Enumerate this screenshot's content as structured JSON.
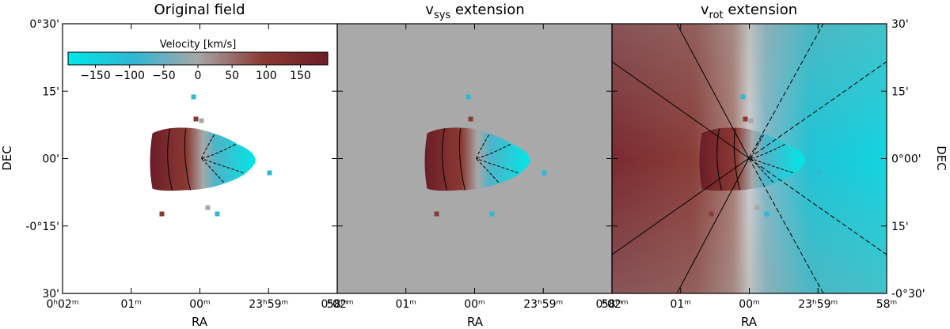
{
  "panels": [
    {
      "id": "original",
      "title_main": "Original field",
      "title_sub": "",
      "title_rest": ""
    },
    {
      "id": "vsys",
      "title_main": "v",
      "title_sub": "sys",
      "title_rest": " extension"
    },
    {
      "id": "vrot",
      "title_main": "v",
      "title_sub": "rot",
      "title_rest": " extension"
    }
  ],
  "axes": {
    "xlabel": "RA",
    "ylabel_left": "DEC",
    "ylabel_right": "DEC",
    "left_ticks": [
      {
        "dec": 30,
        "label": "0°30'"
      },
      {
        "dec": 15,
        "label": "15'"
      },
      {
        "dec": 0,
        "label": "00'"
      },
      {
        "dec": -15,
        "label": "-0°15'"
      },
      {
        "dec": -30,
        "label": "30'"
      }
    ],
    "right_ticks": [
      {
        "dec": 30,
        "label": "30'"
      },
      {
        "dec": 15,
        "label": "15'"
      },
      {
        "dec": 0,
        "label": "0°00'"
      },
      {
        "dec": -15,
        "label": "15'"
      },
      {
        "dec": -30,
        "label": "-0°30'"
      }
    ],
    "x_ticks": [
      {
        "ra_min": 2,
        "label": "0ʰ02ᵐ"
      },
      {
        "ra_min": 1,
        "label": "01ᵐ"
      },
      {
        "ra_min": 0,
        "label": "00ᵐ"
      },
      {
        "ra_min": -1,
        "label": "23ʰ59ᵐ"
      },
      {
        "ra_min": -2,
        "label": "58ᵐ"
      }
    ],
    "x_range": [
      2,
      -2
    ],
    "y_range": [
      -30,
      30
    ]
  },
  "colorbar": {
    "label": "Velocity [km/s]",
    "range": [
      -190,
      190
    ],
    "ticks": [
      -150,
      -100,
      -50,
      0,
      50,
      100,
      150
    ],
    "tick_labels": [
      "−150",
      "−100",
      "−50",
      "0",
      "50",
      "100",
      "150"
    ],
    "color_stops": [
      "#00e6e6",
      "#2fb7d4",
      "#a7a7a7",
      "#8a3a34",
      "#6b1d27"
    ]
  },
  "chart_data": {
    "type": "heatmap",
    "description_units": "velocity field in km/s",
    "vsys_fill_color": "#a9a9a9",
    "velocity_range": [
      -190,
      190
    ]
  }
}
